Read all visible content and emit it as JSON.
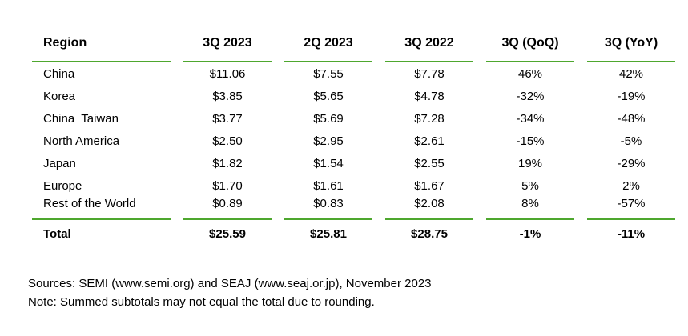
{
  "table": {
    "columns": [
      "Region",
      "3Q 2023",
      "2Q 2023",
      "3Q 2022",
      "3Q (QoQ)",
      "3Q (YoY)"
    ],
    "rows": [
      [
        "China",
        "$11.06",
        "$7.55",
        "$7.78",
        "46%",
        "42%"
      ],
      [
        "Korea",
        "$3.85",
        "$5.65",
        "$4.78",
        "-32%",
        "-19%"
      ],
      [
        "China  Taiwan",
        "$3.77",
        "$5.69",
        "$7.28",
        "-34%",
        "-48%"
      ],
      [
        "North America",
        "$2.50",
        "$2.95",
        "$2.61",
        "-15%",
        "-5%"
      ],
      [
        "Japan",
        "$1.82",
        "$1.54",
        "$2.55",
        "19%",
        "-29%"
      ],
      [
        "Europe",
        "$1.70",
        "$1.61",
        "$1.67",
        "5%",
        "2%"
      ],
      [
        "Rest of the World",
        "$0.89",
        "$0.83",
        "$2.08",
        "8%",
        "-57%"
      ]
    ],
    "total_row": [
      "Total",
      "$25.59",
      "$25.81",
      "$28.75",
      "-1%",
      "-11%"
    ]
  },
  "footer": {
    "sources": "Sources: SEMI (www.semi.org) and SEAJ (www.seaj.or.jp), November 2023",
    "note": "Note: Summed subtotals may not equal the total due to rounding."
  },
  "colors": {
    "accent_green": "#4ea72e",
    "text": "#000000",
    "background": "#ffffff"
  },
  "chart_data": {
    "type": "table",
    "title": "",
    "columns": [
      "Region",
      "3Q 2023",
      "2Q 2023",
      "3Q 2022",
      "3Q (QoQ)",
      "3Q (YoY)"
    ],
    "categories": [
      "China",
      "Korea",
      "China Taiwan",
      "North America",
      "Japan",
      "Europe",
      "Rest of the World",
      "Total"
    ],
    "series": [
      {
        "name": "3Q 2023 ($)",
        "values": [
          11.06,
          3.85,
          3.77,
          2.5,
          1.82,
          1.7,
          0.89,
          25.59
        ]
      },
      {
        "name": "2Q 2023 ($)",
        "values": [
          7.55,
          5.65,
          5.69,
          2.95,
          1.54,
          1.61,
          0.83,
          25.81
        ]
      },
      {
        "name": "3Q 2022 ($)",
        "values": [
          7.78,
          4.78,
          7.28,
          2.61,
          2.55,
          1.67,
          2.08,
          28.75
        ]
      },
      {
        "name": "3Q (QoQ) %",
        "values": [
          46,
          -32,
          -34,
          -15,
          19,
          5,
          8,
          -1
        ]
      },
      {
        "name": "3Q (YoY) %",
        "values": [
          42,
          -19,
          -48,
          -5,
          -29,
          2,
          -57,
          -11
        ]
      }
    ]
  }
}
